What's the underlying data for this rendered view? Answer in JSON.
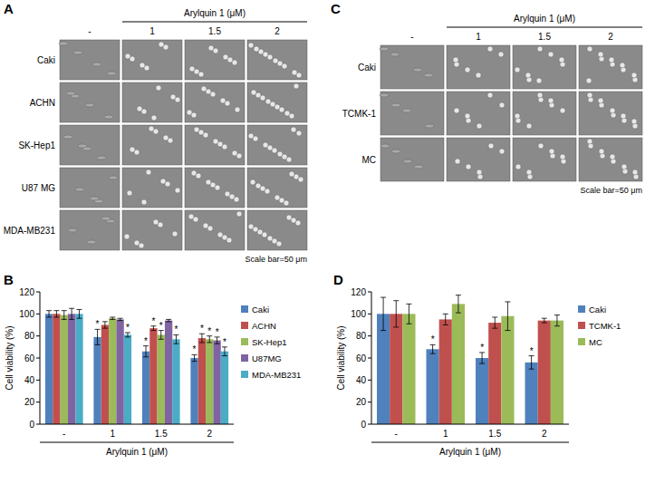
{
  "image_panels": [
    {
      "panel_label": "A",
      "header": "Arylquin 1 (μM)",
      "columns": [
        "-",
        "1",
        "1.5",
        "2"
      ],
      "rows": [
        "Caki",
        "ACHN",
        "SK-Hep1",
        "U87 MG",
        "MDA-MB231"
      ],
      "scale_bar": "Scale bar=50 μm"
    },
    {
      "panel_label": "C",
      "header": "Arylquin 1 (μM)",
      "columns": [
        "-",
        "1",
        "1.5",
        "2"
      ],
      "rows": [
        "Caki",
        "TCMK-1",
        "MC"
      ],
      "scale_bar": "Scale bar=50 μm"
    }
  ],
  "chart_data": [
    {
      "type": "bar",
      "panel_label": "B",
      "x_label": "Arylquin 1 (μM)",
      "y_label": "Cell viability (%)",
      "categories": [
        "-",
        "1",
        "1.5",
        "2"
      ],
      "ylim": [
        0,
        120
      ],
      "yticks": [
        0,
        20,
        40,
        60,
        80,
        100,
        120
      ],
      "legend": "right",
      "series": [
        {
          "name": "Caki",
          "color": "#4f81bd",
          "values": [
            100,
            79,
            66,
            60
          ],
          "errors": [
            3,
            7,
            5,
            3
          ],
          "significance": [
            null,
            "*",
            "*",
            "*"
          ]
        },
        {
          "name": "ACHN",
          "color": "#c0504d",
          "values": [
            100,
            90,
            87,
            78
          ],
          "errors": [
            3,
            3,
            2,
            4
          ],
          "significance": [
            null,
            null,
            "*",
            "*"
          ]
        },
        {
          "name": "SK-Hep1",
          "color": "#9bbb59",
          "values": [
            99,
            96,
            81,
            77
          ],
          "errors": [
            4,
            1,
            4,
            3
          ],
          "significance": [
            null,
            null,
            "*",
            "*"
          ]
        },
        {
          "name": "U87MG",
          "color": "#8064a2",
          "values": [
            100,
            95,
            94,
            76
          ],
          "errors": [
            5,
            1,
            1,
            3
          ],
          "significance": [
            null,
            null,
            null,
            "*"
          ]
        },
        {
          "name": "MDA-MB231",
          "color": "#4bacc6",
          "values": [
            100,
            81,
            77,
            66
          ],
          "errors": [
            4,
            2,
            4,
            4
          ],
          "significance": [
            null,
            "*",
            "*",
            "*"
          ]
        }
      ]
    },
    {
      "type": "bar",
      "panel_label": "D",
      "x_label": "Arylquin 1 (μM)",
      "y_label": "Cell viability (%)",
      "categories": [
        "-",
        "1",
        "1.5",
        "2"
      ],
      "ylim": [
        0,
        120
      ],
      "yticks": [
        0,
        20,
        40,
        60,
        80,
        100,
        120
      ],
      "legend": "right",
      "series": [
        {
          "name": "Caki",
          "color": "#4f81bd",
          "values": [
            100,
            68,
            60,
            56
          ],
          "errors": [
            15,
            4,
            5,
            6
          ],
          "significance": [
            null,
            "*",
            "*",
            "*"
          ]
        },
        {
          "name": "TCMK-1",
          "color": "#c0504d",
          "values": [
            100,
            95,
            92,
            94
          ],
          "errors": [
            12,
            5,
            5,
            2
          ],
          "significance": [
            null,
            null,
            null,
            null
          ]
        },
        {
          "name": "MC",
          "color": "#9bbb59",
          "values": [
            100,
            109,
            98,
            94
          ],
          "errors": [
            9,
            8,
            13,
            5
          ],
          "significance": [
            null,
            null,
            null,
            null
          ]
        }
      ]
    }
  ]
}
